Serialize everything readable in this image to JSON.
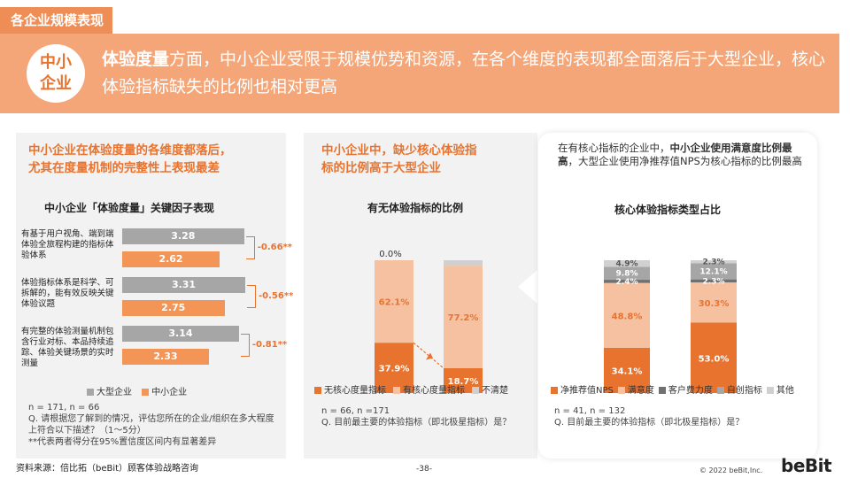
{
  "section_tag": "各企业规模表现",
  "hero": {
    "badge_line1": "中小",
    "badge_line2": "企业",
    "bold_lead": "体验度量",
    "text_rest": "方面，中小企业受限于规模优势和资源，在各个维度的表现都全面落后于大型企业，核心体验指标缺失的比例也相对更高"
  },
  "panel1": {
    "heading_line1": "中小企业在体验度量的各维度都落后，",
    "heading_line2": "尤其在度量机制的完整性上表现最差",
    "chart_title": "中小企业「体验度量」关键因子表现",
    "legend_large": "大型企业",
    "legend_small": "中小企业",
    "note1": "n = 171, n = 66",
    "note2": "Q. 请根据您了解到的情况，评估您所在的企业/组织在多大程度上符合以下描述？（1～5分）",
    "note3": "**代表两者得分在95%置信度区间内有显著差异"
  },
  "panel2": {
    "heading_line1": "中小企业中，缺少核心体验指",
    "heading_line2": "标的比例高于大型企业",
    "chart_title": "有无体验指标的比例",
    "note1": "n = 66, n =171",
    "note2": "Q. 目前最主要的体验指标（即北极星指标）是？"
  },
  "panel3": {
    "intro_a": "在有核心指标的企业中，",
    "intro_b": "中小企业使用满意度比例最高",
    "intro_c": "，大型企业使用净推荐值NPS为核心指标的比例最高",
    "chart_title": "核心体验指标类型占比",
    "note1": "n = 41, n = 132",
    "note2": "Q. 目前最主要的体验指标（即北极星指标）是？"
  },
  "colors": {
    "orange": "#e8732f",
    "light_orange": "#f5c1a0",
    "gray": "#a6a6a6",
    "light_gray": "#d0d0d0",
    "dark_gray": "#707070"
  },
  "chart_data": [
    {
      "type": "bar",
      "orientation": "horizontal",
      "title": "中小企业「体验度量」关键因子表现",
      "categories": [
        "有基于用户视角、端到端体验全旅程构建的指标体验体系",
        "体验指标体系是科学、可拆解的，能有效反映关键体验议题",
        "有完整的体验测量机制包含行业对标、本品持续追踪、体验关键场景的实时测量"
      ],
      "series": [
        {
          "name": "大型企业",
          "values": [
            3.28,
            3.31,
            3.14
          ]
        },
        {
          "name": "中小企业",
          "values": [
            2.62,
            2.75,
            2.33
          ]
        }
      ],
      "differences": [
        "-0.66**",
        "-0.56**",
        "-0.81**"
      ],
      "xlim": [
        0,
        5
      ]
    },
    {
      "type": "bar",
      "stacked": true,
      "title": "有无体验指标的比例",
      "categories": [
        "中小企业",
        "大型企业"
      ],
      "series": [
        {
          "name": "无核心度量指标",
          "values": [
            37.9,
            18.7
          ]
        },
        {
          "name": "有核心度量指标",
          "values": [
            62.1,
            77.2
          ]
        },
        {
          "name": "不清楚",
          "values": [
            0.0,
            4.1
          ]
        }
      ],
      "ylim": [
        0,
        100
      ]
    },
    {
      "type": "bar",
      "stacked": true,
      "title": "核心体验指标类型占比",
      "categories": [
        "中小企业",
        "大型企业"
      ],
      "series": [
        {
          "name": "净推荐值NPS",
          "values": [
            34.1,
            53.0
          ]
        },
        {
          "name": "满意度",
          "values": [
            48.8,
            30.3
          ]
        },
        {
          "name": "客户费力度",
          "values": [
            2.4,
            2.3
          ]
        },
        {
          "name": "自创指标",
          "values": [
            9.8,
            12.1
          ]
        },
        {
          "name": "其他",
          "values": [
            4.9,
            2.3
          ]
        }
      ],
      "ylim": [
        0,
        100
      ]
    }
  ],
  "footer": {
    "source": "资料来源：倍比拓（beBit）顾客体验战略咨询",
    "page": "-38-",
    "copyright": "© 2022 beBit,Inc.",
    "logo": "beBit"
  }
}
